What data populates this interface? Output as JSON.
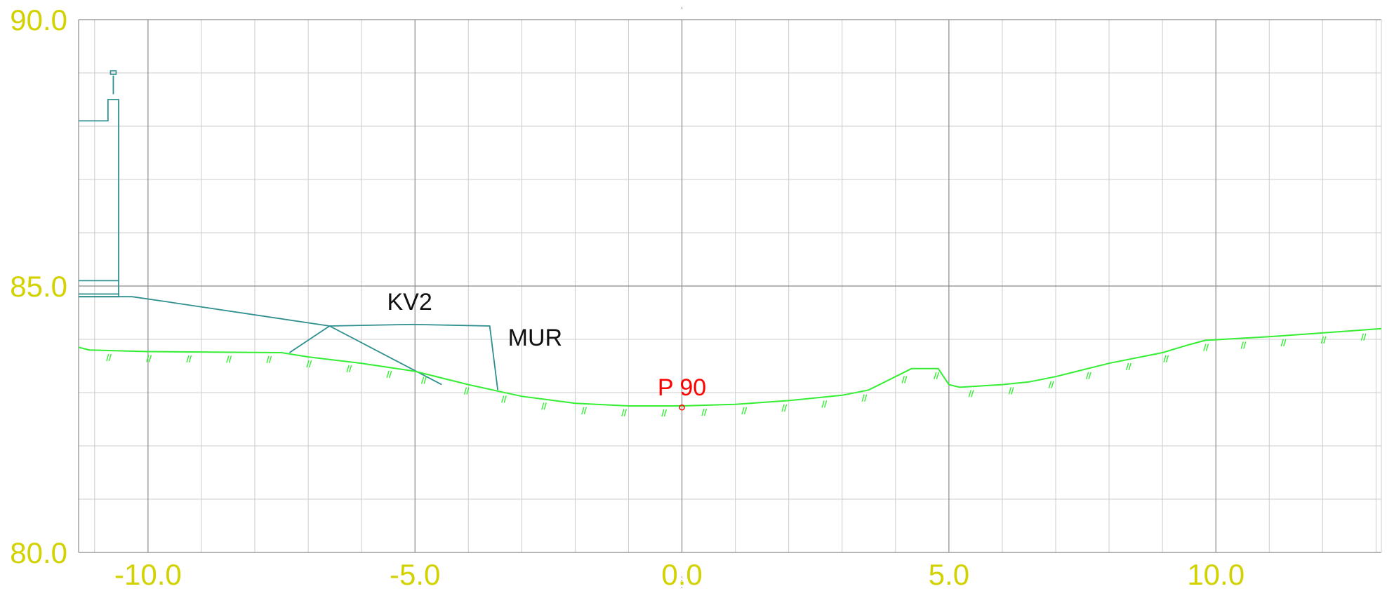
{
  "chart_data": {
    "type": "line",
    "title": "",
    "xlabel": "",
    "ylabel": "",
    "xlim": [
      -11.3,
      13.1
    ],
    "ylim": [
      80.0,
      90.0
    ],
    "x_ticks": [
      -10.0,
      -5.0,
      0.0,
      5.0,
      10.0
    ],
    "x_tick_labels": [
      "-10.0",
      "-5.0",
      "0.0",
      "5.0",
      "10.0"
    ],
    "y_ticks": [
      80.0,
      85.0,
      90.0
    ],
    "y_tick_labels": [
      "80.0",
      "85.0",
      "90.0"
    ],
    "grid": true,
    "colors": {
      "grid_major": "#8a8a8a",
      "grid_minor": "#cccccc",
      "tick_label": "#d2d200",
      "terrain": "#33ee33",
      "structure": "#2f8f8f",
      "label": "#111111",
      "point": "#ff0000"
    },
    "series": [
      {
        "role": "terrain",
        "x": [
          -11.3,
          -11.1,
          -10.0,
          -7.5,
          -7.0,
          -6.0,
          -5.0,
          -4.0,
          -3.0,
          -2.0,
          -1.0,
          0.0,
          1.0,
          2.0,
          3.0,
          3.5,
          4.0,
          4.3,
          4.8,
          5.0,
          5.2,
          6.0,
          6.5,
          7.0,
          8.0,
          9.0,
          9.5,
          9.8,
          11.0,
          12.0,
          13.1
        ],
        "y": [
          83.85,
          83.8,
          83.77,
          83.75,
          83.67,
          83.55,
          83.4,
          83.15,
          82.93,
          82.8,
          82.75,
          82.75,
          82.78,
          82.85,
          82.95,
          83.05,
          83.3,
          83.45,
          83.45,
          83.15,
          83.1,
          83.15,
          83.2,
          83.3,
          83.55,
          83.75,
          83.9,
          83.98,
          84.05,
          84.12,
          84.2
        ]
      },
      {
        "role": "structure",
        "name": "KV2",
        "x": [
          -7.35,
          -6.6,
          -5.05,
          -3.6,
          -3.45
        ],
        "y": [
          83.75,
          84.25,
          84.28,
          84.25,
          83.05
        ]
      },
      {
        "role": "structure",
        "x": [
          -6.6,
          -4.5
        ],
        "y": [
          84.25,
          83.15
        ]
      },
      {
        "role": "structure",
        "x": [
          -11.3,
          -10.3,
          -9.75,
          -6.6
        ],
        "y": [
          84.8,
          84.8,
          84.72,
          84.25
        ]
      },
      {
        "role": "structure",
        "x": [
          -11.3,
          -10.55,
          -10.55,
          -10.75,
          -10.75,
          -11.3
        ],
        "y": [
          84.8,
          84.8,
          88.5,
          88.5,
          88.1,
          88.1
        ]
      },
      {
        "role": "structure",
        "x": [
          -11.3,
          -10.55
        ],
        "y": [
          85.1,
          85.1
        ]
      },
      {
        "role": "structure",
        "x": [
          -11.3,
          -10.55
        ],
        "y": [
          84.85,
          84.85
        ]
      },
      {
        "role": "structure",
        "x": [
          -10.65,
          -10.65
        ],
        "y": [
          88.6,
          88.95
        ]
      }
    ],
    "annotations": [
      {
        "text": "KV2",
        "x": -5.1,
        "y": 84.55,
        "color": "#111111"
      },
      {
        "text": "MUR",
        "x": -2.75,
        "y": 83.88,
        "color": "#111111"
      },
      {
        "text": "P 90",
        "x": 0.0,
        "y": 82.95,
        "color": "#ff0000"
      }
    ],
    "points": [
      {
        "x": 0.0,
        "y": 82.72,
        "color": "#ff0000"
      }
    ],
    "terrain_hatch_x": [
      -10.75,
      -10.0,
      -9.25,
      -8.5,
      -7.75,
      -7.0,
      -6.25,
      -5.5,
      -4.85,
      -4.05,
      -3.35,
      -2.6,
      -1.85,
      -1.1,
      -0.35,
      0.4,
      1.15,
      1.9,
      2.65,
      3.4,
      4.15,
      4.75,
      5.4,
      6.15,
      6.9,
      7.6,
      8.35,
      9.05,
      9.8,
      10.5,
      11.25,
      12.0,
      12.75
    ]
  }
}
